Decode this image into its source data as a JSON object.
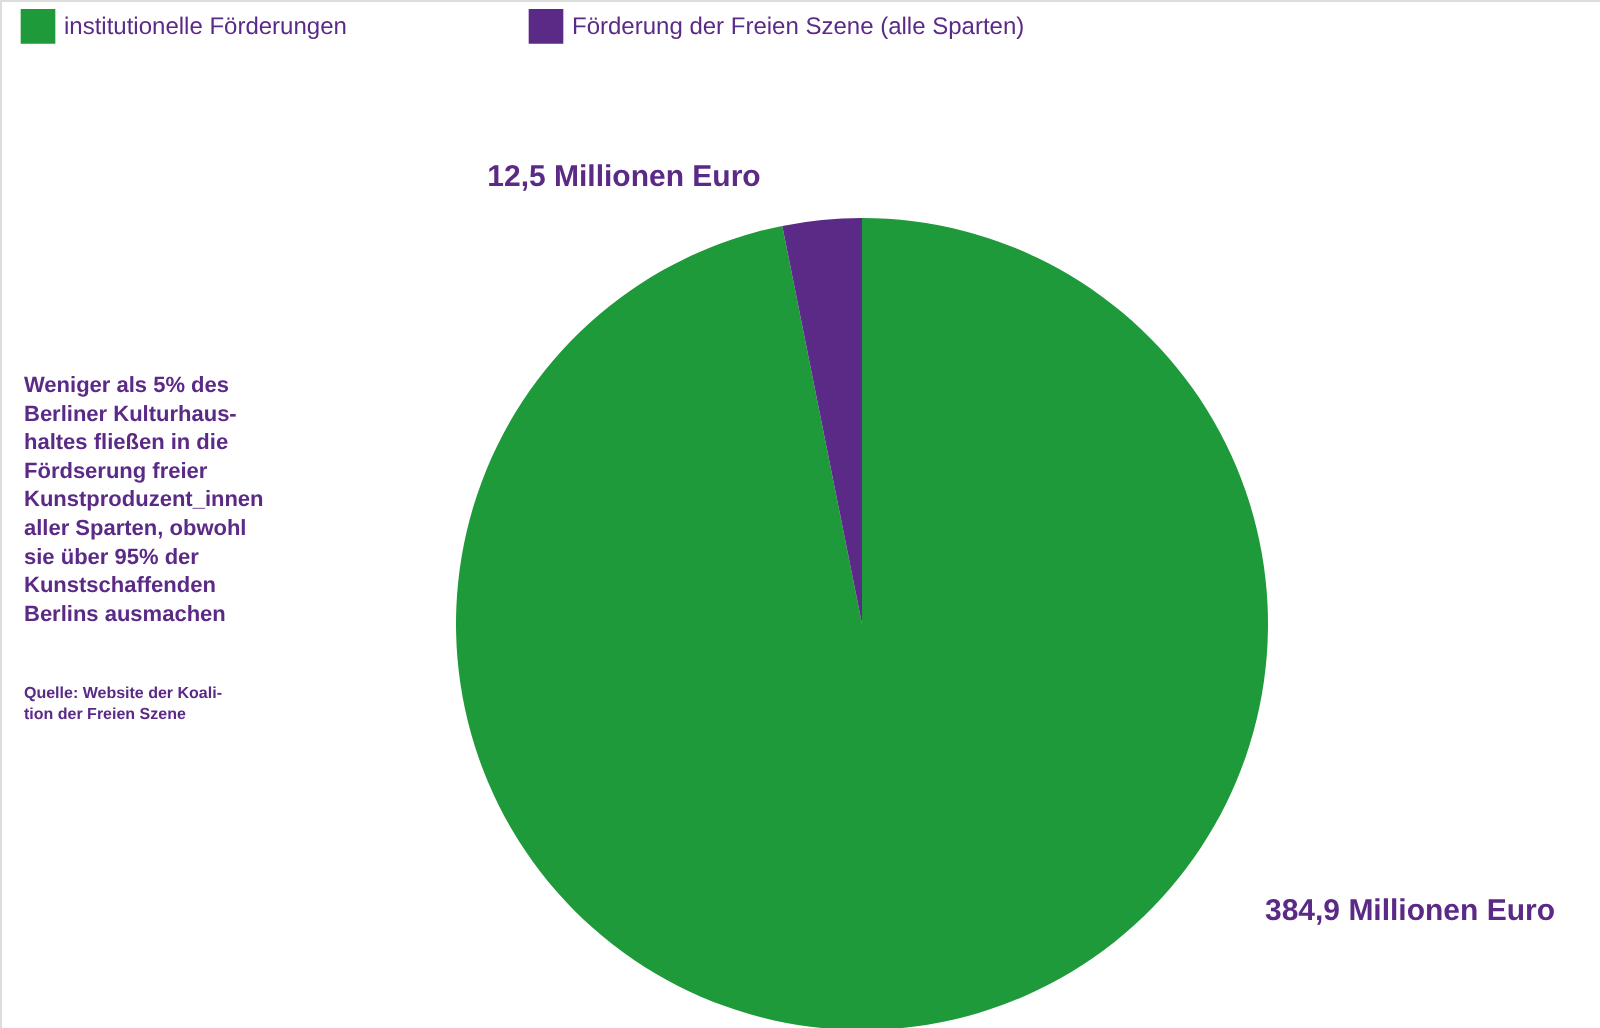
{
  "chart_data": {
    "type": "pie",
    "categories": [
      "institutionelle Förderungen",
      "Förderung der Freien Szene (alle Sparten)"
    ],
    "values": [
      384.9,
      12.5
    ],
    "colors": [
      "#1f9a3a",
      "#5b2a86"
    ],
    "value_labels": [
      "384,9 Millionen Euro",
      "12,5 Millionen Euro"
    ],
    "legend": "top left",
    "annotations": [
      "Weniger als 5% des\nBerliner Kulturhaus-\nhaltes fließen in die\nFördserung freier\nKunstproduzent_innen\naller Sparten, obwohl\nsie über 95% der\nKunstschaffenden\nBerlins ausmachen",
      "Quelle: Website der Koali-\ntion der Freien Szene"
    ]
  }
}
